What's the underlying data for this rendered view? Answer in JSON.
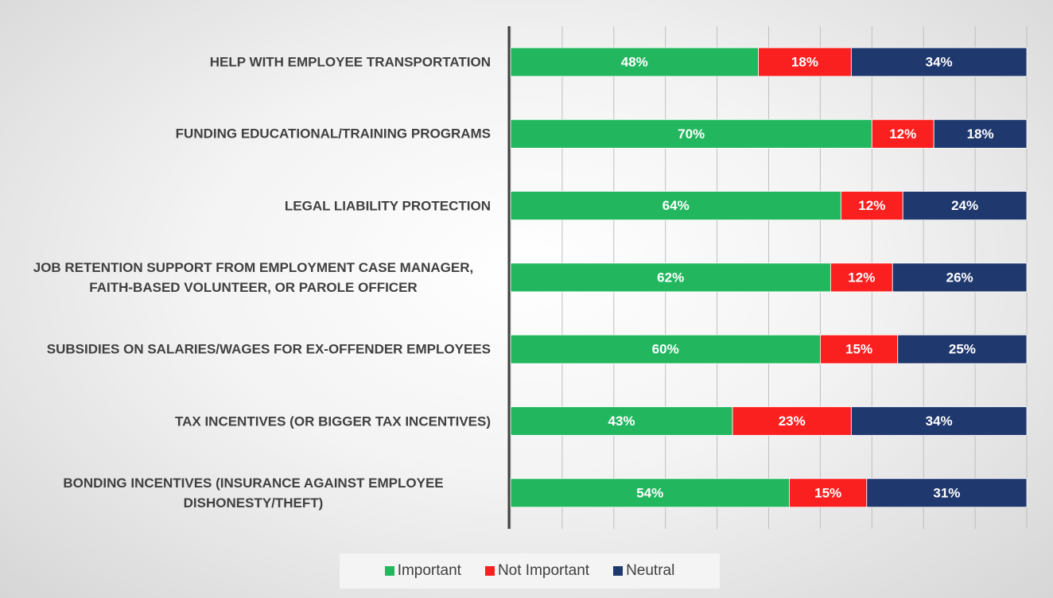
{
  "chart_data": {
    "type": "stacked_bar_horizontal",
    "categories": [
      "HELP WITH EMPLOYEE TRANSPORTATION",
      "FUNDING EDUCATIONAL/TRAINING PROGRAMS",
      "LEGAL LIABILITY PROTECTION",
      "JOB RETENTION SUPPORT FROM EMPLOYMENT CASE MANAGER, FAITH-BASED VOLUNTEER, OR PAROLE OFFICER",
      "SUBSIDIES ON SALARIES/WAGES FOR EX-OFFENDER EMPLOYEES",
      "TAX INCENTIVES (OR BIGGER TAX INCENTIVES)",
      "BONDING INCENTIVES (INSURANCE AGAINST EMPLOYEE DISHONESTY/THEFT)"
    ],
    "series": [
      {
        "name": "Important",
        "color": "#22b75f",
        "values": [
          48,
          70,
          64,
          62,
          60,
          43,
          54
        ],
        "value_labels": [
          "48%",
          "70%",
          "64%",
          "62%",
          "60%",
          "43%",
          "54%"
        ]
      },
      {
        "name": "Not Important",
        "color": "#fb2020",
        "values": [
          18,
          12,
          12,
          12,
          15,
          23,
          15
        ],
        "value_labels": [
          "18%",
          "12%",
          "12%",
          "12%",
          "15%",
          "23%",
          "15%"
        ]
      },
      {
        "name": "Neutral",
        "color": "#1f386d",
        "values": [
          34,
          18,
          24,
          26,
          25,
          34,
          31
        ],
        "value_labels": [
          "34%",
          "18%",
          "24%",
          "26%",
          "25%",
          "34%",
          "31%"
        ]
      }
    ],
    "xlim": [
      0,
      100
    ],
    "xticks": [
      0,
      10,
      20,
      30,
      40,
      50,
      60,
      70,
      80,
      90,
      100
    ],
    "grid": true,
    "legend": "bottom"
  }
}
